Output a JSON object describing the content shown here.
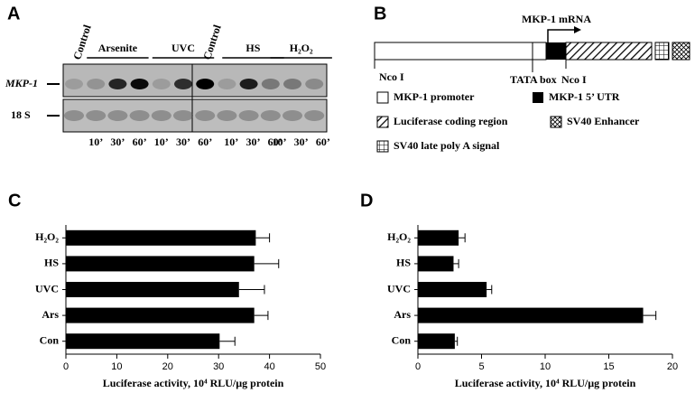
{
  "panel_a": {
    "letter": "A",
    "lane_labels": [
      "Control",
      "Control"
    ],
    "groups": [
      "Arsenite",
      "UVC",
      "HS",
      "H₂O₂"
    ],
    "rows": [
      "MKP-1",
      "18 S"
    ],
    "times": [
      "10’",
      "30’",
      "60’"
    ]
  },
  "panel_b": {
    "letter": "B",
    "transcript": "MKP-1 mRNA",
    "left_site": "Nco I",
    "tata": "TATA box",
    "right_site": "Nco I",
    "legend": [
      "MKP-1 promoter",
      "MKP-1 5’ UTR",
      "Luciferase coding region",
      "SV40 Enhancer",
      "SV40 late poly A signal"
    ]
  },
  "chart_data": [
    {
      "type": "hbar",
      "panel": "C",
      "categories": [
        "H₂O₂",
        "HS",
        "UVC",
        "Ars",
        "Con"
      ],
      "values": [
        37.3,
        37,
        34,
        37,
        30.2
      ],
      "errors": [
        2.7,
        4.8,
        5,
        2.7,
        3
      ],
      "color": "#000000",
      "xlim": [
        0,
        50
      ],
      "xticks": [
        0,
        10,
        20,
        30,
        40,
        50
      ],
      "xlabel": "Luciferase activity, 10⁴ RLU/µg protein"
    },
    {
      "type": "hbar",
      "panel": "D",
      "categories": [
        "H₂O₂",
        "HS",
        "UVC",
        "Ars",
        "Con"
      ],
      "values": [
        3.2,
        2.8,
        5.4,
        17.7,
        2.9
      ],
      "errors": [
        0.5,
        0.4,
        0.4,
        1,
        0.2
      ],
      "color": "#000000",
      "xlim": [
        0,
        20
      ],
      "xticks": [
        0,
        5,
        10,
        15,
        20
      ],
      "xlabel": "Luciferase activity, 10⁴ RLU/µg protein"
    }
  ]
}
